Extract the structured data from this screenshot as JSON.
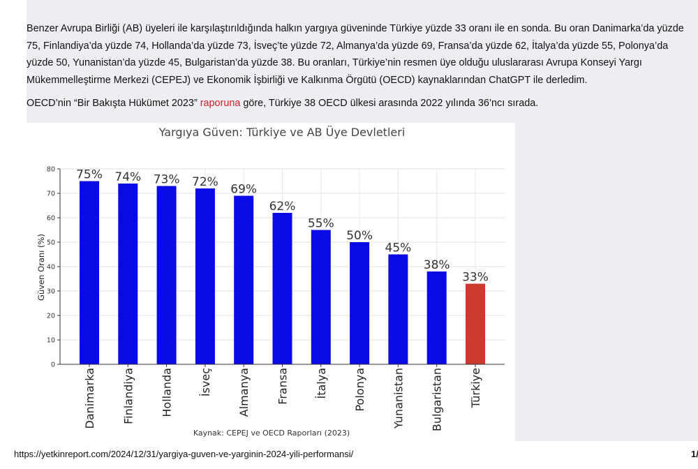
{
  "article": {
    "paragraph1": "Benzer Avrupa Birliği (AB) üyeleri ile karşılaştırıldığında halkın yargıya güveninde Türkiye yüzde 33 oranı ile en sonda. Bu oran Danimarka’da yüzde 75, Finlandiya’da yüzde 74, Hollanda’da yüzde 73, İsveç’te yüzde 72, Almanya’da yüzde 69, Fransa’da yüzde 62, İtalya’da yüzde 55, Polonya’da yüzde 50, Yunanistan’da yüzde 45, Bulgaristan’da yüzde 38. Bu oranları, Türkiye’nin resmen üye olduğu uluslararası Avrupa Konseyi Yargı Mükemmelleştirme Merkezi (CEPEJ) ve Ekonomik İşbirliği ve Kalkınma Örgütü (OECD) kaynaklarından ChatGPT ile derledim.",
    "paragraph2_before": "OECD’nin “Bir Bakışta Hükümet 2023” ",
    "paragraph2_link": "raporuna",
    "paragraph2_after": " göre, Türkiye 38 OECD ülkesi arasında 2022 yılında 36’ncı sırada."
  },
  "footer": {
    "url": "https://yetkinreport.com/2024/12/31/yargiya-guven-ve-yarginin-2024-yili-performansi/",
    "page": "1/"
  },
  "colors": {
    "link": "#d0202a",
    "bar_default": "#0a0ae6",
    "bar_highlight": "#cc3a2e",
    "page_background": "#eceef1"
  },
  "chart_data": {
    "type": "bar",
    "title": "Yargıya Güven: Türkiye ve AB Üye Devletleri",
    "ylabel": "Güven Oranı (%)",
    "xlabel": "Kaynak: CEPEJ ve OECD Raporları (2023)",
    "ylim": [
      0,
      80
    ],
    "yticks": [
      0,
      10,
      20,
      30,
      40,
      50,
      60,
      70,
      80
    ],
    "grid": true,
    "categories": [
      "Danimarka",
      "Finlandiya",
      "Hollanda",
      "İsveç",
      "Almanya",
      "Fransa",
      "İtalya",
      "Polonya",
      "Yunanistan",
      "Bulgaristan",
      "Türkiye"
    ],
    "values": [
      75,
      74,
      73,
      72,
      69,
      62,
      55,
      50,
      45,
      38,
      33
    ],
    "data_labels": [
      "75%",
      "74%",
      "73%",
      "72%",
      "69%",
      "62%",
      "55%",
      "50%",
      "45%",
      "38%",
      "33%"
    ],
    "highlight_category": "Türkiye"
  }
}
